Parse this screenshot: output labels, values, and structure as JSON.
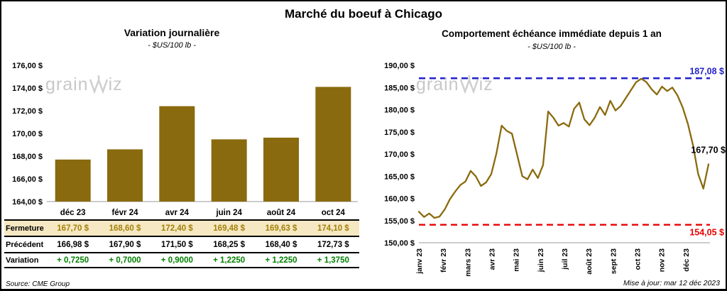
{
  "page": {
    "title": "Marché du boeuf à Chicago",
    "watermark_pre": "grain",
    "watermark_post": "iz",
    "source": "Source: CME Group",
    "updated": "Mise à jour: mar 12 déc 2023"
  },
  "chart_data": [
    {
      "type": "bar",
      "title": "Variation journalière",
      "subtitle": "- $US/100 lb -",
      "ylabel": "$US/100 lb",
      "categories": [
        "déc 23",
        "févr 24",
        "avr 24",
        "juin 24",
        "août 24",
        "oct 24"
      ],
      "values": [
        167.7,
        168.6,
        172.4,
        169.48,
        169.63,
        174.1
      ],
      "ylim": [
        164,
        176
      ],
      "ytick_labels": [
        "176,00 $",
        "174,00 $",
        "172,00 $",
        "170,00 $",
        "168,00 $",
        "166,00 $",
        "164,00 $"
      ],
      "bar_color": "#8a6a0e",
      "table_rows": [
        {
          "label": "Fermeture",
          "style": "fermeture",
          "values": [
            "167,70 $",
            "168,60 $",
            "172,40 $",
            "169,48 $",
            "169,63 $",
            "174,10 $"
          ]
        },
        {
          "label": "Précédent",
          "style": "precedent",
          "values": [
            "166,98 $",
            "167,90 $",
            "171,50 $",
            "168,25 $",
            "168,40 $",
            "172,73 $"
          ]
        },
        {
          "label": "Variation",
          "style": "variation",
          "values": [
            "+ 0,7250",
            "+ 0,7000",
            "+ 0,9000",
            "+ 1,2250",
            "+ 1,2250",
            "+ 1,3750"
          ]
        }
      ]
    },
    {
      "type": "line",
      "title": "Comportement échéance immédiate depuis 1 an",
      "subtitle": "- $US/100 lb -",
      "ylabel": "$US/100 lb",
      "x_labels": [
        "janv 23",
        "févr 23",
        "mars 23",
        "avr 23",
        "mai 23",
        "juin 23",
        "juil 23",
        "août 23",
        "sept 23",
        "oct 23",
        "nov 23",
        "déc 23"
      ],
      "ylim": [
        150,
        190
      ],
      "ytick_labels": [
        "190,00 $",
        "185,00 $",
        "180,00 $",
        "175,00 $",
        "170,00 $",
        "165,00 $",
        "160,00 $",
        "155,00 $",
        "150,00 $"
      ],
      "line_color": "#8a6a0e",
      "values": [
        157.0,
        155.8,
        156.6,
        155.6,
        155.9,
        157.5,
        159.8,
        161.5,
        163.0,
        163.8,
        166.2,
        165.0,
        162.8,
        163.6,
        165.5,
        170.2,
        176.4,
        175.2,
        174.6,
        169.8,
        165.0,
        164.3,
        166.5,
        164.6,
        167.5,
        179.6,
        178.2,
        176.4,
        177.0,
        176.2,
        180.2,
        181.6,
        177.8,
        176.5,
        178.2,
        180.6,
        178.8,
        182.0,
        179.8,
        180.8,
        182.6,
        184.4,
        186.2,
        187.0,
        186.2,
        184.6,
        183.4,
        185.2,
        184.2,
        185.0,
        183.2,
        180.5,
        176.8,
        172.0,
        165.5,
        162.2,
        167.7
      ],
      "max_line": {
        "value": 187.08,
        "label": "187,08 $",
        "color": "#2222cc"
      },
      "min_line": {
        "value": 154.05,
        "label": "154,05 $",
        "color": "#e80000"
      },
      "last_label": {
        "value": 167.7,
        "label": "167,70 $",
        "color": "#000000"
      }
    }
  ]
}
